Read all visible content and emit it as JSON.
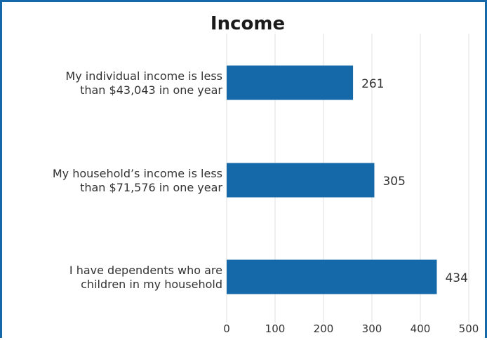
{
  "chart_data": {
    "type": "bar",
    "orientation": "horizontal",
    "title": "Income",
    "categories": [
      [
        "My individual income is less",
        "than $43,043 in one year"
      ],
      [
        "My household’s income is less",
        "than $71,576 in one year"
      ],
      [
        "I have dependents who are",
        "children in my household"
      ]
    ],
    "values": [
      261,
      305,
      434
    ],
    "xlim": [
      0,
      500
    ],
    "xticks": [
      0,
      100,
      200,
      300,
      400,
      500
    ],
    "grid": true,
    "data_labels": true,
    "bar_color": "#1669a8",
    "frame_color": "#1669a8"
  }
}
